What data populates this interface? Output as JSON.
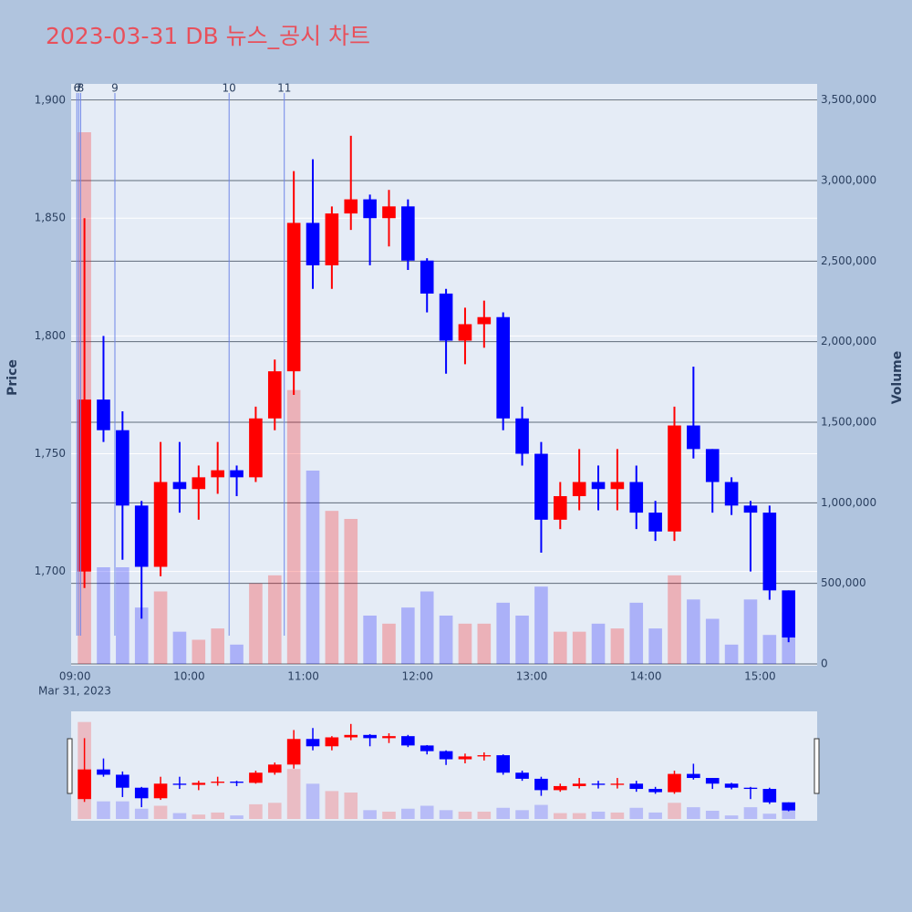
{
  "chart_data": {
    "type": "candlestick",
    "title": "2023-03-31 DB 뉴스_공시 차트",
    "x_axis_date": "Mar 31, 2023",
    "y_label": "Price",
    "y2_label": "Volume",
    "increasing_color": "#ff0000",
    "decreasing_color": "#0000ff",
    "news_color": "#6f86e8",
    "grid": true,
    "x": [
      "09:05",
      "09:15",
      "09:25",
      "09:35",
      "09:45",
      "09:55",
      "10:05",
      "10:15",
      "10:25",
      "10:35",
      "10:45",
      "10:55",
      "11:05",
      "11:15",
      "11:25",
      "11:35",
      "11:45",
      "11:55",
      "12:05",
      "12:15",
      "12:25",
      "12:35",
      "12:45",
      "12:55",
      "13:05",
      "13:15",
      "13:25",
      "13:35",
      "13:45",
      "13:55",
      "14:05",
      "14:15",
      "14:25",
      "14:35",
      "14:45",
      "14:55",
      "15:05",
      "15:15"
    ],
    "open": [
      1700,
      1773,
      1760,
      1728,
      1702,
      1738,
      1735,
      1740,
      1743,
      1740,
      1765,
      1785,
      1848,
      1830,
      1852,
      1858,
      1850,
      1855,
      1832,
      1818,
      1798,
      1805,
      1808,
      1765,
      1750,
      1722,
      1732,
      1738,
      1735,
      1738,
      1725,
      1717,
      1762,
      1752,
      1738,
      1728,
      1725,
      1692
    ],
    "high": [
      1850,
      1800,
      1768,
      1730,
      1755,
      1755,
      1745,
      1755,
      1745,
      1770,
      1790,
      1870,
      1875,
      1855,
      1885,
      1860,
      1862,
      1858,
      1833,
      1820,
      1812,
      1815,
      1810,
      1770,
      1755,
      1738,
      1752,
      1745,
      1752,
      1745,
      1730,
      1770,
      1787,
      1752,
      1740,
      1730,
      1728,
      1692
    ],
    "low": [
      1693,
      1755,
      1705,
      1680,
      1698,
      1725,
      1722,
      1733,
      1732,
      1738,
      1760,
      1775,
      1820,
      1820,
      1845,
      1830,
      1838,
      1828,
      1810,
      1784,
      1788,
      1795,
      1760,
      1745,
      1708,
      1718,
      1726,
      1726,
      1726,
      1718,
      1713,
      1713,
      1748,
      1725,
      1724,
      1700,
      1688,
      1670
    ],
    "close": [
      1773,
      1760,
      1728,
      1702,
      1738,
      1735,
      1740,
      1743,
      1740,
      1765,
      1785,
      1848,
      1830,
      1852,
      1858,
      1850,
      1855,
      1832,
      1818,
      1798,
      1805,
      1808,
      1765,
      1750,
      1722,
      1732,
      1738,
      1735,
      1738,
      1725,
      1717,
      1762,
      1752,
      1738,
      1728,
      1725,
      1692,
      1672
    ],
    "volume": [
      3300000,
      600000,
      600000,
      350000,
      450000,
      200000,
      150000,
      220000,
      120000,
      500000,
      550000,
      1700000,
      1200000,
      950000,
      900000,
      300000,
      250000,
      350000,
      450000,
      300000,
      250000,
      250000,
      380000,
      300000,
      480000,
      200000,
      200000,
      250000,
      220000,
      380000,
      220000,
      550000,
      400000,
      280000,
      120000,
      400000,
      180000,
      320000
    ],
    "news": [
      {
        "label": "6",
        "x": "09:01"
      },
      {
        "label": "7",
        "x": "09:02"
      },
      {
        "label": "8",
        "x": "09:03"
      },
      {
        "label": "9",
        "x": "09:21"
      },
      {
        "label": "10",
        "x": "10:21"
      },
      {
        "label": "11",
        "x": "10:50"
      }
    ],
    "xlim": [
      "08:58",
      "15:30"
    ],
    "xticks": [
      "09:00",
      "10:00",
      "11:00",
      "12:00",
      "13:00",
      "14:00",
      "15:00"
    ],
    "ylim": [
      1660,
      1907
    ],
    "yticks": [
      {
        "value": 1700,
        "label": "1,700"
      },
      {
        "value": 1750,
        "label": "1,750"
      },
      {
        "value": 1800,
        "label": "1,800"
      },
      {
        "value": 1850,
        "label": "1,850"
      },
      {
        "value": 1900,
        "label": "1,900"
      }
    ],
    "y2lim": [
      0,
      3600000
    ],
    "y2ticks": [
      0,
      {
        "value": 500000,
        "label": "500,000"
      },
      {
        "value": 1000000,
        "label": "1,000,000"
      },
      {
        "value": 1500000,
        "label": "1,500,000"
      },
      {
        "value": 2000000,
        "label": "2,000,000"
      },
      {
        "value": 2500000,
        "label": "2,500,000"
      },
      {
        "value": 3000000,
        "label": "3,000,000"
      },
      {
        "value": 3500000,
        "label": "3,500,000"
      }
    ]
  }
}
